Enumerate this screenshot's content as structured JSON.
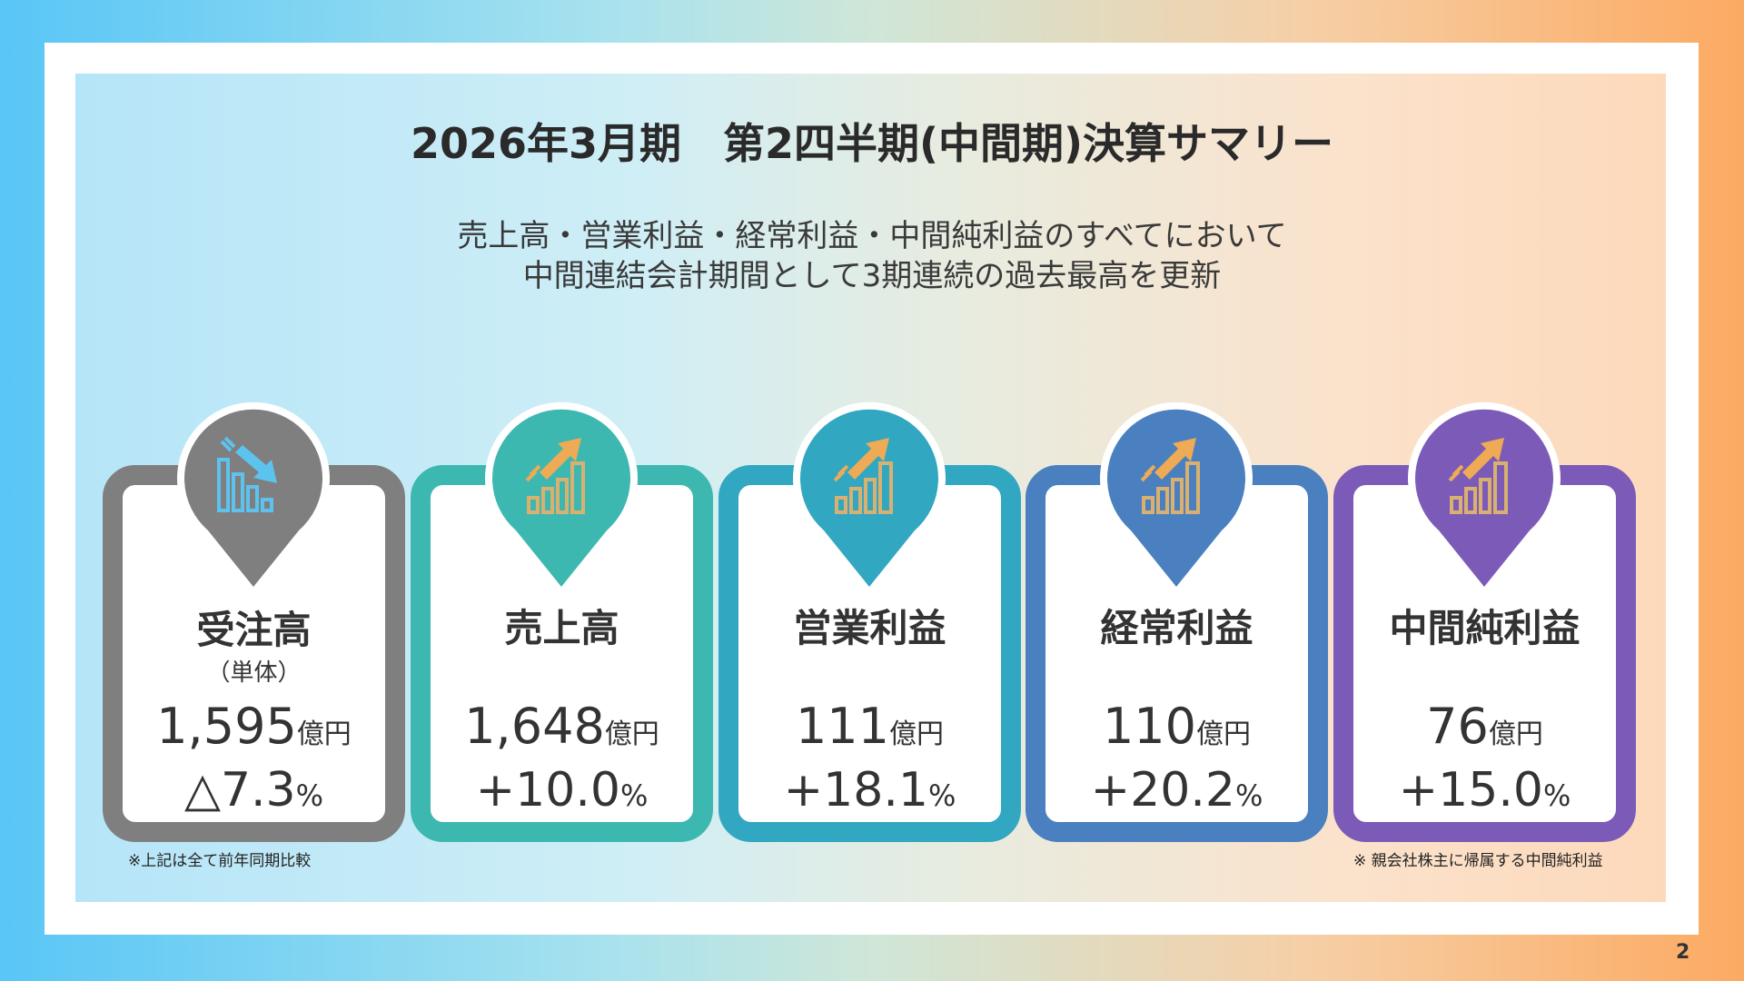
{
  "title": "2026年3月期　第2四半期(中間期)決算サマリー",
  "subtitle": [
    "売上高・営業利益・経常利益・中間純利益のすべてにおいて",
    "中間連結会計期間として3期連続の過去最高を更新"
  ],
  "cards": [
    {
      "label": "受注高",
      "sub": "（単体）",
      "value": "1,595",
      "unit": "億円",
      "change": "△7.3",
      "pct": "%",
      "color": "#7f7f7f",
      "icon": "chart-down-icon",
      "icon_color": "#5cc3ef"
    },
    {
      "label": "売上高",
      "sub": "",
      "value": "1,648",
      "unit": "億円",
      "change": "+10.0",
      "pct": "%",
      "color": "#3db8b0",
      "icon": "chart-up-icon",
      "icon_color": "#eeaa55"
    },
    {
      "label": "営業利益",
      "sub": "",
      "value": "111",
      "unit": "億円",
      "change": "+18.1",
      "pct": "%",
      "color": "#31a7c2",
      "icon": "chart-up-icon",
      "icon_color": "#eeaa55"
    },
    {
      "label": "経常利益",
      "sub": "",
      "value": "110",
      "unit": "億円",
      "change": "+20.2",
      "pct": "%",
      "color": "#4a80bf",
      "icon": "chart-up-icon",
      "icon_color": "#eeaa55"
    },
    {
      "label": "中間純利益",
      "sub": "",
      "value": "76",
      "unit": "億円",
      "change": "+15.0",
      "pct": "%",
      "color": "#7c5bb8",
      "icon": "chart-up-icon",
      "icon_color": "#eeaa55"
    }
  ],
  "note_left": "※上記は全て前年同期比較",
  "note_right": "※ 親会社株主に帰属する中間純利益",
  "page_number": "2"
}
